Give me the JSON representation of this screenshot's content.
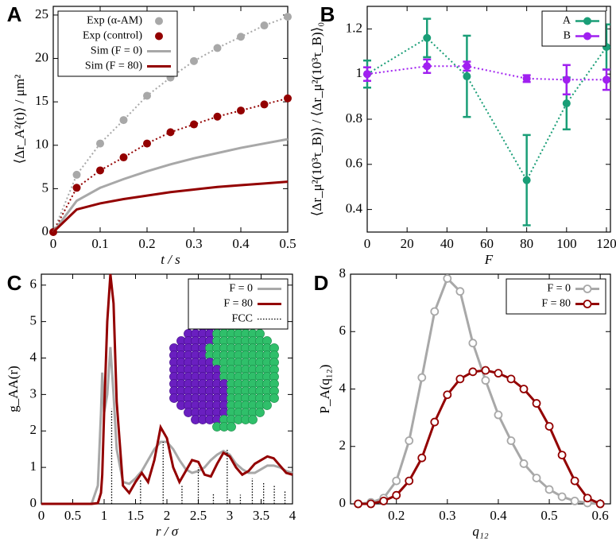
{
  "chart_data": [
    {
      "type": "line",
      "label": "A",
      "xlabel": "t / s",
      "ylabel": "⟨Δr_A²(t)⟩ / μm²",
      "x": [
        0,
        0.05,
        0.1,
        0.15,
        0.2,
        0.25,
        0.3,
        0.35,
        0.4,
        0.45,
        0.5
      ],
      "xlim": [
        0,
        0.5
      ],
      "xticks": [
        0,
        0.1,
        0.2,
        0.3,
        0.4,
        0.5
      ],
      "ylim": [
        0,
        26
      ],
      "yticks": [
        0,
        5,
        10,
        15,
        20,
        25
      ],
      "legend": "upper left",
      "series": [
        {
          "name": "Exp (α-AM)",
          "color": "#a8a8a8",
          "line": "dotted",
          "marker": "filled",
          "values": [
            0,
            6.6,
            10.2,
            12.9,
            15.7,
            17.8,
            19.7,
            21.2,
            22.5,
            23.8,
            24.8
          ]
        },
        {
          "name": "Exp (control)",
          "color": "#930000",
          "line": "dotted",
          "marker": "filled",
          "values": [
            0,
            5.1,
            7.1,
            8.6,
            10.2,
            11.5,
            12.4,
            13.3,
            14.0,
            14.7,
            15.4
          ]
        },
        {
          "name": "Sim (F = 0)",
          "color": "#a8a8a8",
          "line": "solid",
          "values": [
            0,
            3.6,
            5.1,
            6.1,
            7.0,
            7.8,
            8.5,
            9.1,
            9.7,
            10.2,
            10.7
          ]
        },
        {
          "name": "Sim (F = 80)",
          "color": "#930000",
          "line": "solid",
          "values": [
            0,
            2.6,
            3.3,
            3.8,
            4.2,
            4.6,
            4.9,
            5.2,
            5.4,
            5.6,
            5.8
          ]
        }
      ]
    },
    {
      "type": "line",
      "label": "B",
      "xlabel": "F",
      "ylabel": "⟨Δr_μ²(10³τ_B)⟩ / ⟨Δr_μ²(10³τ_B)⟩₀",
      "x": [
        0,
        30,
        50,
        80,
        100,
        120
      ],
      "xlim": [
        0,
        122
      ],
      "xticks": [
        0,
        20,
        40,
        60,
        80,
        100,
        120
      ],
      "ylim": [
        0.3,
        1.3
      ],
      "yticks": [
        0.4,
        0.6,
        0.8,
        1,
        1.2
      ],
      "legend": "upper right",
      "series": [
        {
          "name": "A",
          "color": "#1a9e77",
          "line": "dotted",
          "marker": "filled",
          "values": [
            1.0,
            1.16,
            0.99,
            0.53,
            0.87,
            1.12
          ],
          "errors": [
            0.06,
            0.085,
            0.18,
            0.2,
            0.115,
            0.1
          ]
        },
        {
          "name": "B",
          "color": "#a020f0",
          "line": "dotted",
          "marker": "filled",
          "values": [
            1.0,
            1.035,
            1.035,
            0.98,
            0.975,
            0.975
          ],
          "errors": [
            0.03,
            0.03,
            0.02,
            0.015,
            0.065,
            0.045
          ]
        }
      ]
    },
    {
      "type": "line",
      "label": "C",
      "xlabel": "r / σ",
      "ylabel": "g_AA(r)",
      "x": [
        0,
        0.8,
        0.9,
        0.95,
        0.97,
        1.0,
        1.05,
        1.1,
        1.15,
        1.2,
        1.3,
        1.4,
        1.5,
        1.6,
        1.7,
        1.8,
        1.9,
        2.0,
        2.1,
        2.2,
        2.3,
        2.4,
        2.5,
        2.6,
        2.7,
        2.8,
        2.9,
        3.0,
        3.1,
        3.2,
        3.3,
        3.4,
        3.5,
        3.6,
        3.7,
        3.8,
        3.9,
        4.0
      ],
      "xlim": [
        0,
        4
      ],
      "xticks": [
        0,
        0.5,
        1,
        1.5,
        2,
        2.5,
        3,
        3.5,
        4
      ],
      "ylim": [
        0,
        6.3
      ],
      "yticks": [
        0,
        1,
        2,
        3,
        4,
        5,
        6
      ],
      "legend": "upper right",
      "series": [
        {
          "name": "F = 0",
          "color": "#a8a8a8",
          "line": "solid",
          "values": [
            0,
            0,
            0.5,
            2.5,
            3.6,
            2.5,
            3.0,
            4.3,
            3.0,
            1.5,
            0.6,
            0.55,
            0.7,
            0.9,
            1.2,
            1.5,
            1.7,
            1.7,
            1.5,
            1.2,
            0.95,
            0.85,
            0.9,
            1.0,
            1.2,
            1.35,
            1.45,
            1.35,
            1.1,
            0.95,
            0.85,
            0.85,
            0.95,
            1.05,
            1.05,
            1.0,
            0.9,
            0.85
          ]
        },
        {
          "name": "F = 80",
          "color": "#930000",
          "line": "solid",
          "values": [
            0,
            0,
            0.02,
            0.3,
            0.8,
            2.5,
            5.0,
            6.3,
            5.5,
            2.8,
            0.5,
            0.3,
            0.6,
            0.85,
            0.6,
            1.2,
            2.1,
            1.8,
            1.0,
            0.6,
            0.9,
            1.2,
            1.15,
            0.8,
            0.75,
            1.1,
            1.4,
            1.3,
            1.0,
            0.8,
            0.9,
            1.1,
            1.2,
            1.3,
            1.25,
            1.05,
            0.85,
            0.8
          ]
        },
        {
          "name": "FCC",
          "color": "#000000",
          "line": "impulse",
          "x": [
            1.12,
            1.58,
            1.94,
            2.24,
            2.5,
            2.74,
            2.96,
            3.17,
            3.36,
            3.54,
            3.71,
            3.88
          ],
          "values": [
            2.6,
            0.65,
            1.7,
            0.5,
            1.0,
            0.3,
            1.5,
            0.25,
            0.7,
            0.6,
            0.5,
            0.35
          ]
        }
      ]
    },
    {
      "type": "line",
      "label": "D",
      "xlabel": "q₁₂",
      "ylabel": "P_A(q₁₂)",
      "x": [
        0.125,
        0.15,
        0.175,
        0.2,
        0.225,
        0.25,
        0.275,
        0.3,
        0.325,
        0.35,
        0.375,
        0.4,
        0.425,
        0.45,
        0.475,
        0.5,
        0.525,
        0.55,
        0.575,
        0.6
      ],
      "xlim": [
        0.11,
        0.62
      ],
      "xticks": [
        0.2,
        0.3,
        0.4,
        0.5,
        0.6
      ],
      "ylim": [
        0,
        8
      ],
      "yticks": [
        0,
        2,
        4,
        6,
        8
      ],
      "legend": "upper right",
      "series": [
        {
          "name": "F = 0",
          "color": "#a8a8a8",
          "line": "solid",
          "marker": "open",
          "values": [
            0,
            0.05,
            0.2,
            0.8,
            2.2,
            4.4,
            6.7,
            7.85,
            7.4,
            5.6,
            4.3,
            3.1,
            2.2,
            1.4,
            0.9,
            0.5,
            0.25,
            0.1,
            0.03,
            0
          ]
        },
        {
          "name": "F = 80",
          "color": "#930000",
          "line": "solid",
          "marker": "open",
          "values": [
            0,
            0,
            0.1,
            0.3,
            0.8,
            1.6,
            2.85,
            3.8,
            4.35,
            4.6,
            4.65,
            4.55,
            4.35,
            4.0,
            3.5,
            2.7,
            1.7,
            0.8,
            0.2,
            0
          ]
        }
      ]
    }
  ]
}
